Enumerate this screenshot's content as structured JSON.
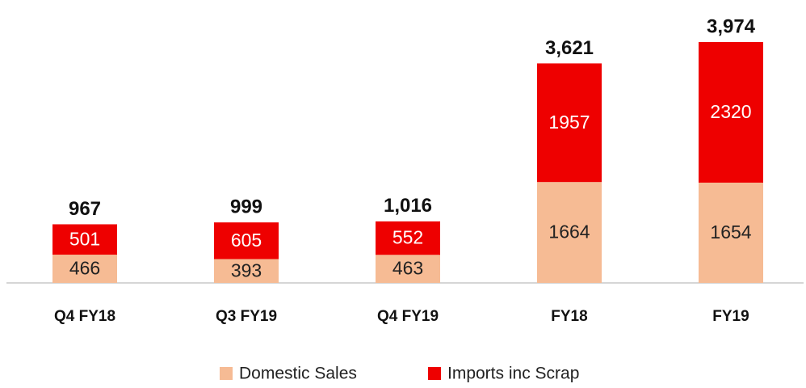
{
  "chart_data": {
    "type": "stacked_bar",
    "categories": [
      "Q4 FY18",
      "Q3 FY19",
      "Q4 FY19",
      "FY18",
      "FY19"
    ],
    "series": [
      {
        "name": "Domestic Sales",
        "color": "#f6bb94",
        "values": [
          466,
          393,
          463,
          1664,
          1654
        ]
      },
      {
        "name": "Imports inc Scrap",
        "color": "#ee0000",
        "values": [
          501,
          605,
          552,
          1957,
          2320
        ]
      }
    ],
    "totals": [
      {
        "value": 967,
        "label": "967"
      },
      {
        "value": 999,
        "label": "999"
      },
      {
        "value": 1016,
        "label": "1,016"
      },
      {
        "value": 3621,
        "label": "3,621"
      },
      {
        "value": 3974,
        "label": "3,974"
      }
    ],
    "ylim": [
      0,
      4000
    ],
    "legend": "bottom"
  }
}
